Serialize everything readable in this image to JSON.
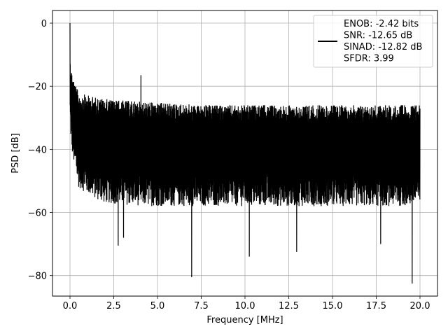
{
  "chart_data": {
    "type": "line",
    "xlabel": "Frequency [MHz]",
    "ylabel": "PSD [dB]",
    "xlim": [
      -1.0,
      21.0
    ],
    "ylim": [
      -86.5,
      4.0
    ],
    "x_ticks": [
      0.0,
      2.5,
      5.0,
      7.5,
      10.0,
      12.5,
      15.0,
      17.5,
      20.0
    ],
    "x_tick_labels": [
      "0.0",
      "2.5",
      "5.0",
      "7.5",
      "10.0",
      "12.5",
      "15.0",
      "17.5",
      "20.0"
    ],
    "y_ticks": [
      0,
      -20,
      -40,
      -60,
      -80
    ],
    "y_tick_labels": [
      "0",
      "−20",
      "−40",
      "−60",
      "−80"
    ],
    "grid": true,
    "legend_position": "top-right",
    "legend": {
      "lines": [
        "ENOB: -2.42 bits",
        "SNR: -12.65 dB",
        "SINAD: -12.82 dB",
        "SFDR: 3.99"
      ]
    },
    "series": [
      {
        "color": "#000000",
        "x_range": [
          0.0,
          20.0
        ],
        "peak_at_x": 0.0,
        "peak_value": 0.0,
        "spur": {
          "x": 4.05,
          "value": -16.5
        },
        "upper_envelope_db": [
          -9,
          -22,
          -24,
          -25,
          -26
        ],
        "lower_envelope_db": [
          -30,
          -52,
          -57,
          -58,
          -58
        ],
        "deep_nulls": [
          {
            "x": 2.75,
            "value": -70.5
          },
          {
            "x": 3.05,
            "value": -68.0
          },
          {
            "x": 6.95,
            "value": -80.5
          },
          {
            "x": 10.25,
            "value": -74.0
          },
          {
            "x": 12.95,
            "value": -72.5
          },
          {
            "x": 17.75,
            "value": -70.0
          },
          {
            "x": 19.55,
            "value": -82.5
          }
        ]
      }
    ]
  }
}
